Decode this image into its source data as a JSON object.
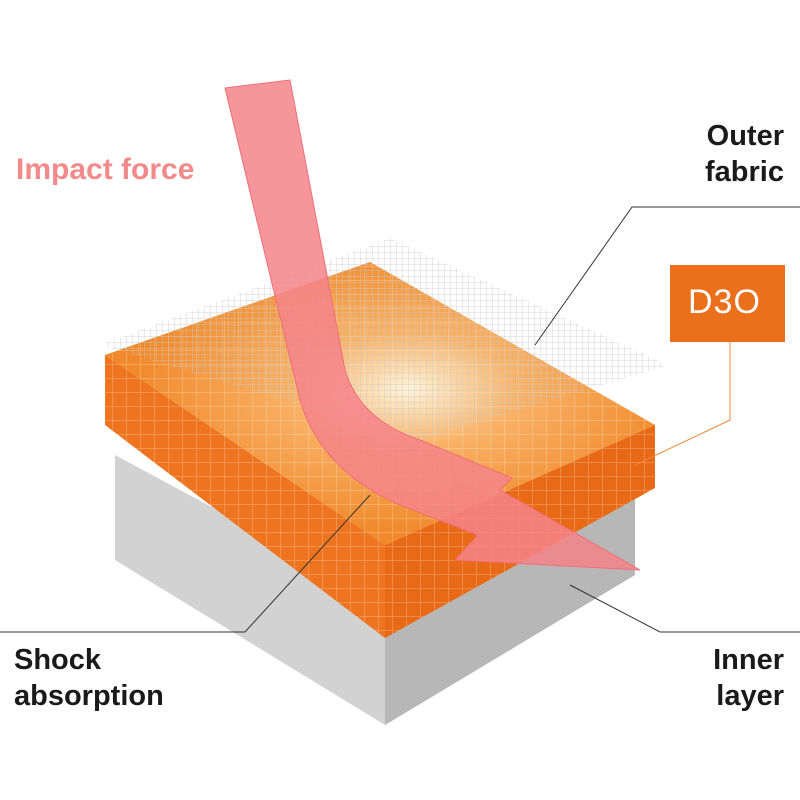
{
  "labels": {
    "impact_force": "Impact force",
    "outer_fabric": [
      "Outer",
      "fabric"
    ],
    "shock_absorption": [
      "Shock",
      "absorption"
    ],
    "inner_layer": [
      "Inner",
      "layer"
    ]
  },
  "logo": {
    "text": "D3O"
  },
  "colors": {
    "arrow": "#f4848a",
    "foam": "#ef7a22",
    "base": "#c9c9c9",
    "logo_bg": "#ec6f1b",
    "impact_label": "#f28a8a"
  }
}
